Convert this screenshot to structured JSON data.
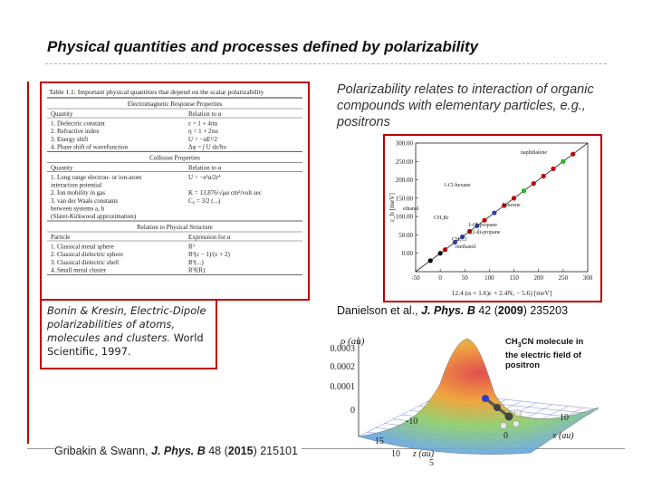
{
  "slide": {
    "title": "Physical quantities and processes defined by polarizability",
    "intro_text": "Polarizability relates to interaction of organic compounds with elementary particles, e.g., positrons",
    "bonin_ref": {
      "authors": "Bonin & Kresin,",
      "title": "Electric-Dipole polarizabilities of atoms, molecules and clusters.",
      "publisher": "World Scientific, 1997."
    },
    "danielson_ref": {
      "authors": "Danielson et al., ",
      "journal": "J. Phys. B",
      "volume": " 42 (",
      "year": "2009",
      "pages": ") 235203"
    },
    "gribakin_ref": {
      "authors": "Gribakin & Swann, ",
      "journal": "J. Phys. B",
      "volume": " 48 (",
      "year": "2015",
      "pages": ") 215101"
    },
    "molecule_label": {
      "line1": "CH",
      "sub": "3",
      "line1b": "CN molecule in",
      "line2": "the electric field of",
      "line3": "positron"
    }
  },
  "table": {
    "caption": "Table 1.1:  Important physical quantities that depend on the scalar polarizability",
    "sections": [
      {
        "header": "Electromagnetic Response Properties",
        "col1": "Quantity",
        "col2": "Relation to α",
        "rows": [
          [
            "1.  Dielectric constant",
            "ε = 1 + 4πα"
          ],
          [
            "2.  Refractive index",
            "η = 1 + 2πα"
          ],
          [
            "3.  Energy shift",
            "U = −αE²/2"
          ],
          [
            "4.  Phase shift of wavefunction",
            "Δφ = ∫ U dz/ħυ"
          ]
        ]
      },
      {
        "header": "Collision Properties",
        "col1": "Quantity",
        "col2": "Relation to α",
        "rows": [
          [
            "1.  Long range electron- or ion-atom",
            "U = −e²α/2r⁴"
          ],
          [
            "     interaction potential",
            ""
          ],
          [
            "2.  Ion mobility in gas",
            "K = 13.876/√μα cm²/volt sec"
          ],
          [
            "3.  van der Waals constants",
            "C₆ = 3/2 (...)"
          ],
          [
            "     between systems a, b",
            ""
          ],
          [
            "     (Slater-Kirkwood approximation)",
            ""
          ]
        ]
      },
      {
        "header": "Relation to Physical Structure",
        "col1": "Particle",
        "col2": "Expression for α",
        "rows": [
          [
            "1.  Classical metal sphere",
            "R³"
          ],
          [
            "2.  Classical dielectric sphere",
            "R³(ε − 1)/(ε + 2)"
          ],
          [
            "3.  Classical dielectric shell",
            "R³(...)"
          ],
          [
            "4.  Small metal cluster",
            "R³f(R)"
          ]
        ]
      }
    ]
  },
  "chart_data": [
    {
      "type": "scatter",
      "title": "",
      "xlabel": "12.4 (α + 1.6)ε + 2.4Nₓ − 5.6) [meV]",
      "ylabel": "ε_b [meV]",
      "xlim": [
        -50,
        300
      ],
      "ylim": [
        -50,
        300
      ],
      "xticks": [
        -50,
        0,
        50,
        100,
        150,
        200,
        250,
        300
      ],
      "yticks": [
        0,
        50,
        100,
        150,
        200,
        250,
        300
      ],
      "annotations": [
        "naphthalene",
        "1-Cl-hexane",
        "benzene",
        "ethanol",
        "CH₃Br",
        "1-Cl-propane",
        "2,2-di-propane",
        "CH₃Cl",
        "methanol"
      ],
      "series": [
        {
          "values_x": [
            -20,
            0,
            10,
            30,
            45,
            60,
            75,
            90,
            110,
            130,
            150,
            170,
            190,
            210,
            230,
            250,
            270
          ],
          "values_y": [
            -20,
            0,
            10,
            30,
            45,
            60,
            75,
            90,
            110,
            130,
            150,
            170,
            190,
            210,
            230,
            250,
            270
          ]
        }
      ],
      "fit_line": {
        "x": [
          -50,
          300
        ],
        "y": [
          -50,
          300
        ]
      }
    },
    {
      "type": "heatmap",
      "title": "",
      "zlabel": "ρ (au)",
      "zticks": [
        "0",
        "0.0001",
        "0.0002",
        "0.0003"
      ],
      "xlabel": "z (au)",
      "ylabel": "x (au)",
      "xticks": [
        "-10",
        "0",
        "10"
      ],
      "yticks": [
        "15",
        "10",
        "5"
      ]
    }
  ],
  "colors": {
    "accent": "#c00000",
    "rule": "#b0b0b0"
  }
}
